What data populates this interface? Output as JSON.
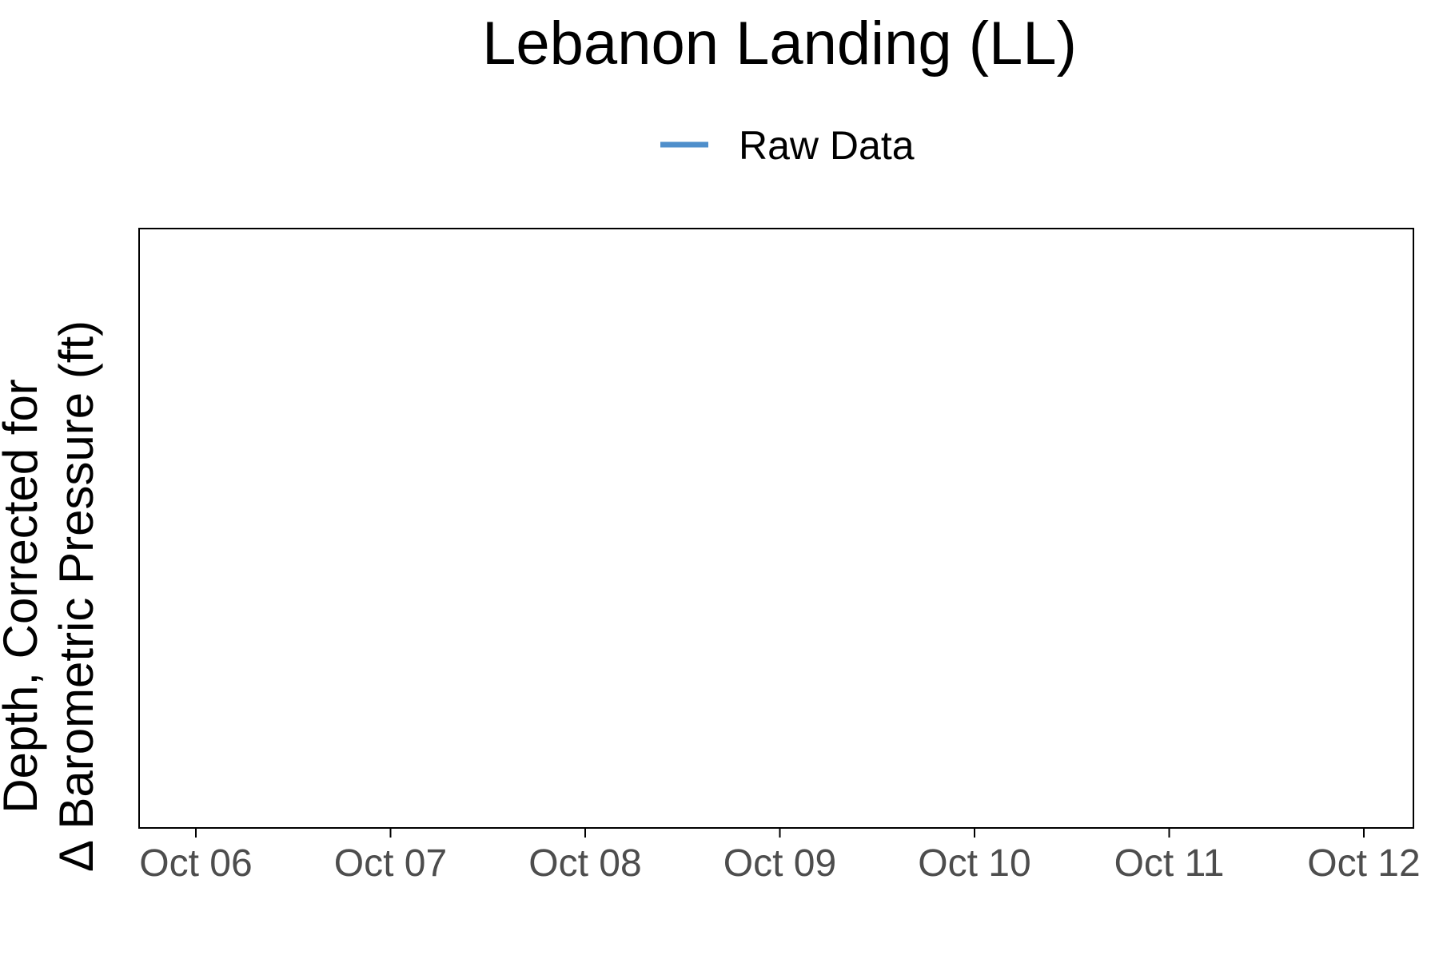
{
  "chart_data": {
    "type": "line",
    "title": "Lebanon Landing (LL)",
    "xlabel": "",
    "ylabel_lines": [
      "Depth, Corrected for",
      "Δ Barometric Pressure (ft)"
    ],
    "x_ticks": [
      "Oct 06",
      "Oct 07",
      "Oct 08",
      "Oct 09",
      "Oct 10",
      "Oct 11",
      "Oct 12"
    ],
    "series": [
      {
        "name": "Raw Data",
        "color": "#4f8fcb",
        "values": []
      }
    ],
    "legend_position": "top",
    "grid": false
  }
}
